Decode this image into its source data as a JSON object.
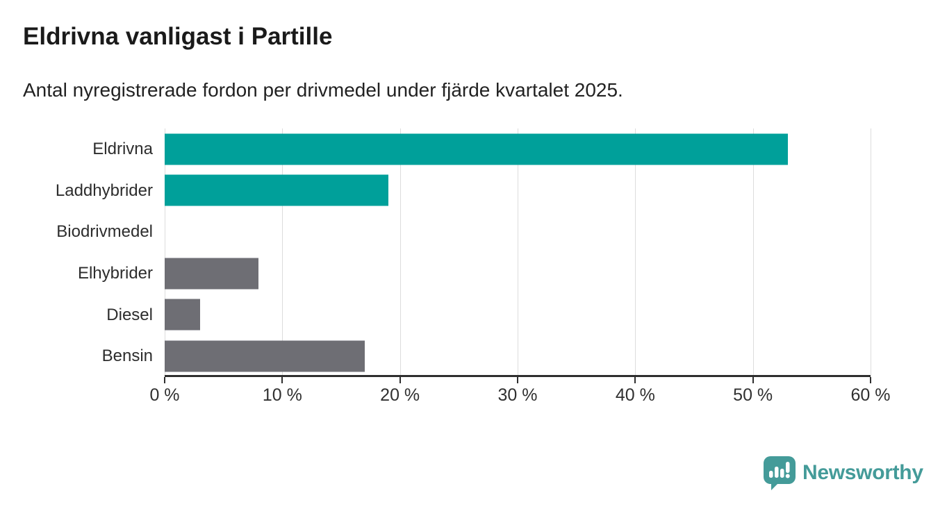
{
  "header": {
    "title": "Eldrivna vanligast i Partille",
    "subtitle": "Antal nyregistrerade fordon per drivmedel under fjärde kvartalet 2025."
  },
  "chart_data": {
    "type": "bar",
    "orientation": "horizontal",
    "title": "Eldrivna vanligast i Partille",
    "subtitle": "Antal nyregistrerade fordon per drivmedel under fjärde kvartalet 2025.",
    "categories": [
      "Eldrivna",
      "Laddhybrider",
      "Biodrivmedel",
      "Elhybrider",
      "Diesel",
      "Bensin"
    ],
    "values": [
      53,
      19,
      0,
      8,
      3,
      17
    ],
    "unit": "%",
    "bar_colors": [
      "#00a09a",
      "#00a09a",
      "#6e6e74",
      "#6e6e74",
      "#6e6e74",
      "#6e6e74"
    ],
    "xlim": [
      0,
      60
    ],
    "x_ticks": [
      {
        "value": 0,
        "label": "0 %"
      },
      {
        "value": 10,
        "label": "10 %"
      },
      {
        "value": 20,
        "label": "20 %"
      },
      {
        "value": 30,
        "label": "30 %"
      },
      {
        "value": 40,
        "label": "40 %"
      },
      {
        "value": 50,
        "label": "50 %"
      },
      {
        "value": 60,
        "label": "60 %"
      }
    ],
    "grid": "vertical-only",
    "legend": "none"
  },
  "branding": {
    "logo_text": "Newsworthy",
    "logo_color": "#449b99",
    "logo_icon": "newsworthy-speech-bubble-bar-chart-icon"
  },
  "colors": {
    "accent_teal": "#00a09a",
    "neutral_gray": "#6e6e74",
    "axis": "#2e2e2e",
    "gridline": "#dcdcdc",
    "title_text": "#1a1a1a",
    "body_text": "#2d2d2d"
  }
}
